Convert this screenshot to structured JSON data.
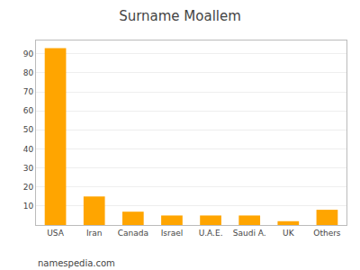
{
  "chart_data": {
    "type": "bar",
    "title": "Surname Moallem",
    "categories": [
      "USA",
      "Iran",
      "Canada",
      "Israel",
      "U.A.E.",
      "Saudi A.",
      "UK",
      "Others"
    ],
    "values": [
      93,
      15,
      7,
      5,
      5,
      5,
      2,
      8
    ],
    "color": "#FFA500",
    "ylim": [
      0,
      97
    ],
    "yticks": [
      10,
      20,
      30,
      40,
      50,
      60,
      70,
      80,
      90
    ],
    "grid": true,
    "annotations": [
      "namespedia.com"
    ]
  }
}
